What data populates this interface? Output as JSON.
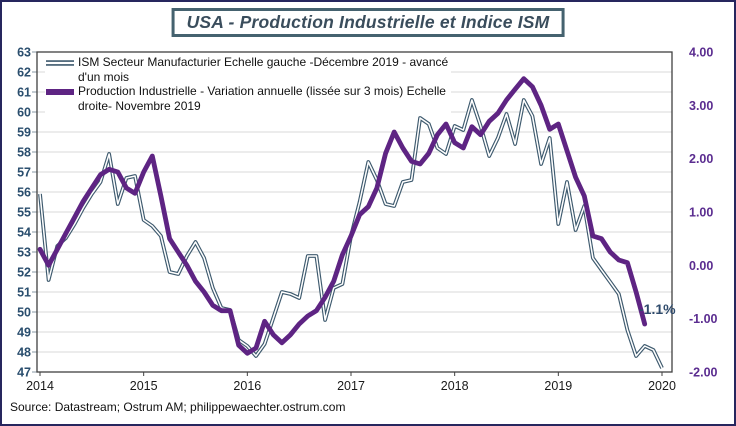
{
  "window": {
    "title": "USA - Production Industrielle et Indice ISM"
  },
  "source_text": "Source: Datastream; Ostrum AM; philippewaechter.ostrum.com",
  "annotation": {
    "text": "-1.1%",
    "color": "#2E4A6B"
  },
  "legend": [
    {
      "series": "ism",
      "line1": "ISM Secteur Manufacturier Echelle gauche -Décembre 2019 - avancé",
      "line2": "d'un mois"
    },
    {
      "series": "production-industrielle",
      "line1": "Production Industrielle - Variation annuelle (lissée sur 3 mois) Echelle",
      "line2": "droite- Novembre 2019"
    }
  ],
  "chart_data": {
    "type": "line",
    "title": "USA - Production Industrielle et Indice ISM",
    "grid": "horizontal",
    "legend_position": "top-left-inside",
    "x_years": [
      2014,
      2015,
      2016,
      2017,
      2018,
      2019,
      2020
    ],
    "x_start_month": "2014-01",
    "months_per_pixel_note": "monthly data",
    "left_axis": {
      "min": 47,
      "max": 63,
      "step": 1,
      "color": "#2A4E6E"
    },
    "right_axis": {
      "min": -2,
      "max": 4,
      "step": 1,
      "decimals": 2,
      "color": "#5B2D90"
    },
    "series": [
      {
        "name": "ISM Secteur Manufacturier (échelle gauche, avancé d'un mois)",
        "axis": "left",
        "style": "outlined",
        "color": "#3E5A6E",
        "core_color": "#ffffff",
        "last_label": "Décembre 2019",
        "values": [
          55.9,
          51.6,
          53.3,
          53.7,
          54.4,
          55.2,
          55.9,
          56.5,
          57.9,
          55.4,
          56.7,
          56.8,
          54.6,
          54.3,
          53.8,
          52.0,
          51.9,
          52.8,
          53.5,
          52.7,
          51.2,
          50.2,
          50.1,
          48.6,
          48.3,
          47.8,
          48.4,
          49.7,
          51.0,
          50.9,
          50.7,
          52.8,
          52.8,
          49.6,
          51.2,
          51.4,
          53.8,
          55.5,
          57.5,
          56.6,
          55.4,
          55.3,
          56.5,
          56.6,
          59.7,
          59.4,
          58.2,
          57.9,
          59.3,
          59.1,
          60.6,
          59.3,
          57.8,
          58.7,
          59.9,
          58.4,
          60.6,
          59.8,
          57.4,
          58.7,
          54.4,
          56.5,
          54.1,
          55.3,
          52.7,
          52.1,
          51.5,
          50.9,
          49.1,
          47.8,
          48.3,
          48.1,
          47.2
        ]
      },
      {
        "name": "Production Industrielle - Variation annuelle lissée sur 3 mois (échelle droite)",
        "axis": "right",
        "style": "thick",
        "color": "#5E2483",
        "last_label": "Novembre 2019",
        "last_value": -1.1,
        "values": [
          0.3,
          0.0,
          0.3,
          0.6,
          0.9,
          1.2,
          1.45,
          1.7,
          1.8,
          1.75,
          1.45,
          1.35,
          1.75,
          2.05,
          1.3,
          0.5,
          0.25,
          0.0,
          -0.3,
          -0.5,
          -0.75,
          -0.85,
          -0.85,
          -1.5,
          -1.65,
          -1.55,
          -1.05,
          -1.3,
          -1.45,
          -1.3,
          -1.1,
          -0.95,
          -0.85,
          -0.6,
          -0.3,
          0.2,
          0.55,
          0.95,
          1.1,
          1.45,
          2.1,
          2.5,
          2.2,
          1.95,
          1.9,
          2.1,
          2.45,
          2.65,
          2.3,
          2.2,
          2.6,
          2.45,
          2.7,
          2.85,
          3.1,
          3.3,
          3.5,
          3.35,
          3.0,
          2.55,
          2.65,
          2.15,
          1.65,
          1.3,
          0.55,
          0.5,
          0.25,
          0.1,
          0.05,
          -0.5,
          -1.1
        ]
      }
    ],
    "colors": {
      "gridline": "#D9D9D9",
      "frame": "#404040",
      "x_labels": "#1a1a1a",
      "outer_border": "#26265E",
      "title_border": "#45626F",
      "title_text": "#3A4D5C"
    }
  }
}
